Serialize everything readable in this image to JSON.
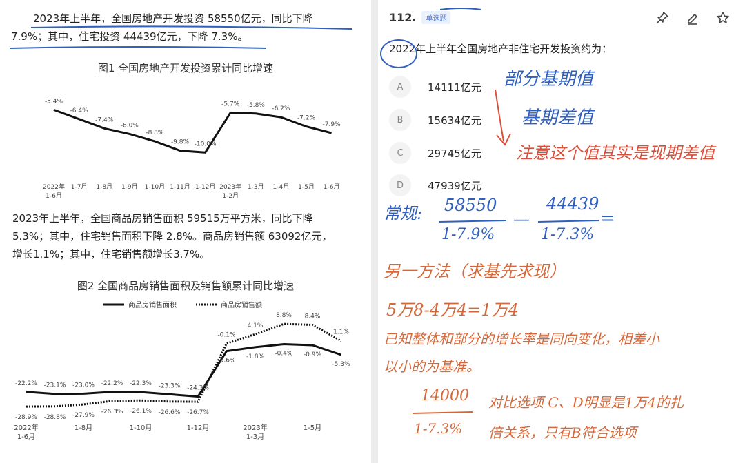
{
  "left": {
    "intro_lines": [
      "2023年上半年，全国房地产开发投资 58550亿元，同比下降",
      "7.9%；其中，住宅投资 44439亿元，下降 7.3%。"
    ],
    "fig1_title": "图1  全国房地产开发投资累计同比增速",
    "sales_lines": [
      "2023年上半年，全国商品房销售面积 59515万平方米，同比下降",
      "5.3%；其中，住宅销售面积下降 2.8%。商品房销售额 63092亿元，",
      "增长1.1%；其中，住宅销售额增长3.7%。"
    ],
    "fig2_title": "图2  全国商品房销售面积及销售额累计同比增速"
  },
  "chart_data": [
    {
      "type": "line",
      "title": "图1  全国房地产开发投资累计同比增速",
      "categories": [
        "2022年 1-6月",
        "1-7月",
        "1-8月",
        "1-9月",
        "1-10月",
        "1-11月",
        "1-12月",
        "2023年 1-2月",
        "1-3月",
        "1-4月",
        "1-5月",
        "1-6月"
      ],
      "category_lines": [
        [
          "2022年",
          "1-6月"
        ],
        [
          "1-7月"
        ],
        [
          "1-8月"
        ],
        [
          "1-9月"
        ],
        [
          "1-10月"
        ],
        [
          "1-11月"
        ],
        [
          "1-12月"
        ],
        [
          "2023年",
          "1-2月"
        ],
        [
          "1-3月"
        ],
        [
          "1-4月"
        ],
        [
          "1-5月"
        ],
        [
          "1-6月"
        ]
      ],
      "values": [
        -5.4,
        -6.4,
        -7.4,
        -8.0,
        -8.8,
        -9.8,
        -10.0,
        -5.7,
        -5.8,
        -6.2,
        -7.2,
        -7.9
      ],
      "labels": [
        "-5.4%",
        "-6.4%",
        "-7.4%",
        "-8.0%",
        "-8.8%",
        "-9.8%",
        "-10.0%",
        "-5.7%",
        "-5.8%",
        "-6.2%",
        "-7.2%",
        "-7.9%"
      ],
      "ylim": [
        -10.5,
        -5
      ],
      "line_color": "#111111"
    },
    {
      "type": "line",
      "title": "图2  全国商品房销售面积及销售额累计同比增速",
      "category_ticks": [
        [
          "2022年",
          "1-6月"
        ],
        [
          "1-8月"
        ],
        [
          "1-10月"
        ],
        [
          "1-12月"
        ],
        [
          "2023年",
          "1-3月"
        ],
        [
          "1-5月"
        ]
      ],
      "tick_indices": [
        0,
        2,
        4,
        6,
        8,
        10
      ],
      "series": [
        {
          "name": "商品房销售面积",
          "style": "solid",
          "values": [
            -22.2,
            -23.1,
            -23.0,
            -22.2,
            -22.3,
            -23.3,
            -24.3,
            -3.6,
            -1.8,
            -0.4,
            -0.9,
            -5.3
          ],
          "labels": [
            "-22.2%",
            "-23.1%",
            "-23.0%",
            "-22.2%",
            "-22.3%",
            "-23.3%",
            "-24.3%",
            "-3.6%",
            "-1.8%",
            "-0.4%",
            "-0.9%",
            "-5.3%"
          ]
        },
        {
          "name": "商品房销售额",
          "style": "dotted",
          "values": [
            -28.9,
            -28.8,
            -27.9,
            -26.3,
            -26.1,
            -26.6,
            -26.7,
            -0.1,
            4.1,
            8.8,
            8.4,
            1.1
          ],
          "labels": [
            "-28.9%",
            "-28.8%",
            "-27.9%",
            "-26.3%",
            "-26.1%",
            "-26.6%",
            "-26.7%",
            "-0.1%",
            "4.1%",
            "8.8%",
            "8.4%",
            "1.1%"
          ]
        }
      ],
      "ylim": [
        -32,
        12
      ],
      "legend_position": "top-center"
    }
  ],
  "question": {
    "number": "112.",
    "badge": "单选题",
    "text": "2022年上半年全国房地产非住宅开发投资约为：",
    "options": [
      {
        "letter": "A",
        "text": "14111亿元"
      },
      {
        "letter": "B",
        "text": "15634亿元"
      },
      {
        "letter": "C",
        "text": "29745亿元"
      },
      {
        "letter": "D",
        "text": "47939亿元"
      }
    ],
    "tools": [
      "pin-icon",
      "edit-icon",
      "star-icon"
    ]
  },
  "notes": {
    "partial_base": "部分基期值",
    "base_diff": "基期差值",
    "note_red": "注意这个值其实是现期差值",
    "regular_label": "常规:",
    "frac1_num": "58550",
    "frac1_den": "1-7.9%",
    "minus": "—",
    "frac2_num": "44439",
    "frac2_den": "1-7.3%",
    "equals": "=",
    "method2": "另一方法（求基先求现）",
    "calc": "5万8-4万4=1万4",
    "reason1": "已知整体和部分的增长率是同向变化，相差小",
    "reason2": "以小的为基准。",
    "frac3_num": "14000",
    "frac3_den": "1-7.3%",
    "concl1": "对比选项 C、D明显是1万4的扎",
    "concl2": "倍关系，只有B符合选项"
  },
  "colors": {
    "annotation_blue": "#2f5fbf",
    "annotation_red": "#d94f3a",
    "annotation_orange": "#d4683a"
  }
}
